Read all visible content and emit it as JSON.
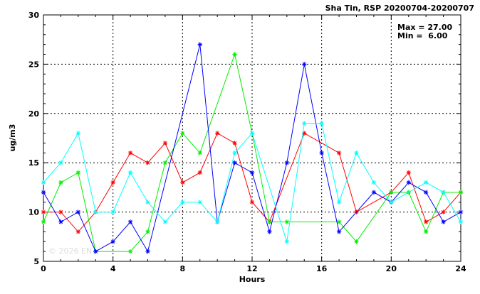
{
  "chart_data": {
    "type": "line",
    "title": "Sha Tin, RSP 20200704-20200707",
    "stats": {
      "max": "Max = 27.00",
      "min": "Min =  6.00"
    },
    "xlabel": "Hours",
    "ylabel": "ug/m3",
    "xlim": [
      0,
      24
    ],
    "ylim": [
      5,
      30
    ],
    "xticks": [
      0,
      4,
      8,
      12,
      16,
      20,
      24
    ],
    "yticks": [
      5,
      10,
      15,
      20,
      25,
      30
    ],
    "grid": true,
    "watermark": "© 2026  EN",
    "x": [
      0,
      1,
      2,
      3,
      4,
      5,
      6,
      7,
      8,
      9,
      10,
      11,
      12,
      13,
      14,
      15,
      16,
      17,
      18,
      19,
      20,
      21,
      22,
      23,
      24
    ],
    "series": [
      {
        "color": "#ff0000",
        "values": [
          10,
          10,
          8,
          10,
          13,
          16,
          15,
          17,
          13,
          14,
          18,
          17,
          11,
          9,
          null,
          18,
          null,
          16,
          10,
          null,
          12,
          14,
          9,
          10,
          12
        ]
      },
      {
        "color": "#00ee00",
        "values": [
          9,
          13,
          14,
          6,
          null,
          6,
          8,
          15,
          18,
          16,
          null,
          26,
          18,
          9,
          9,
          null,
          null,
          9,
          7,
          null,
          12,
          12,
          8,
          12,
          12
        ]
      },
      {
        "color": "#0000ff",
        "values": [
          12,
          9,
          10,
          6,
          7,
          9,
          6,
          null,
          null,
          27,
          9,
          15,
          14,
          8,
          15,
          25,
          16,
          8,
          null,
          12,
          11,
          13,
          12,
          9,
          10
        ]
      },
      {
        "color": "#00ffff",
        "values": [
          13,
          15,
          18,
          10,
          10,
          14,
          11,
          9,
          11,
          11,
          9,
          16,
          18,
          null,
          7,
          19,
          19,
          11,
          16,
          13,
          11,
          null,
          13,
          12,
          9
        ]
      }
    ]
  }
}
